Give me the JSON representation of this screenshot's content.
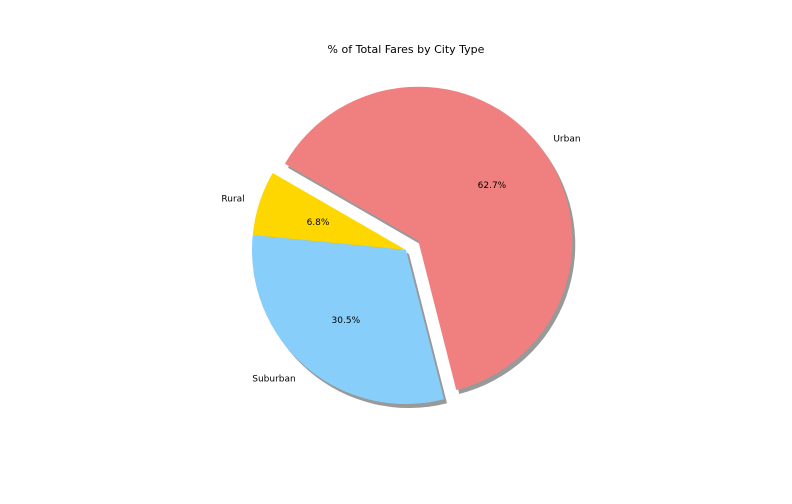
{
  "chart_data": {
    "type": "pie",
    "title": "% of Total Fares by City Type",
    "labels": [
      "Rural",
      "Suburban",
      "Urban"
    ],
    "values": [
      6.8,
      30.5,
      62.7
    ],
    "value_labels": [
      "6.8%",
      "30.5%",
      "62.7%"
    ],
    "colors": [
      "#FFD700",
      "#87CEFA",
      "#F08080"
    ],
    "explode": [
      0,
      0,
      0.1
    ],
    "shadow": true,
    "start_angle_deg": 150,
    "legend": false
  }
}
